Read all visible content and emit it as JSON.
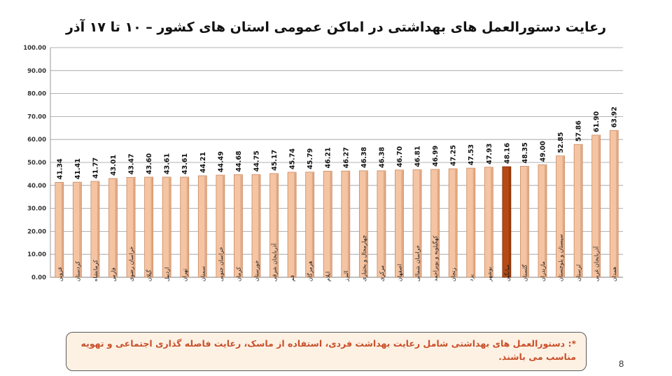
{
  "slide": {
    "title": "رعایت دستورالعمل های بهداشتی در اماکن عمومی استان های کشور  –  ۱۰ تا ۱۷ آذر",
    "note": "*: دستورالعمل های بهداشتی شامل رعایت بهداشت فردی، استفاده از ماسک، رعایت فاصله گذاری اجتماعی و تهویه مناسب می باشند.",
    "page_number": "8"
  },
  "colors": {
    "bar_fill": "#f5c4a2",
    "bar_stroke": "#c98a62",
    "highlight_fill": "#b84a14",
    "highlight_stroke": "#7a2c06",
    "grid": "#9a9a9a",
    "note_text": "#c8502a",
    "note_bg": "#fdf1e4"
  },
  "chart_data": {
    "type": "bar",
    "title": "رعایت دستورالعمل های بهداشتی در اماکن عمومی استان های کشور  –  ۱۰ تا ۱۷ آذر",
    "xlabel": "",
    "ylabel": "",
    "ylim": [
      0,
      100
    ],
    "yticks": [
      "0.00",
      "10.00",
      "20.00",
      "30.00",
      "40.00",
      "50.00",
      "60.00",
      "70.00",
      "80.00",
      "90.00",
      "100.00"
    ],
    "grid": true,
    "categories": [
      "قزوین",
      "کردستان",
      "کرمانشاه",
      "فارس",
      "خراسان رضوی",
      "گیلان",
      "اردبیل",
      "تهران",
      "سمنان",
      "خراسان جنوبی",
      "کرمان",
      "خوزستان",
      "آذربایجان شرقی",
      "قم",
      "هرمزگان",
      "ایلام",
      "البرز",
      "چهارمحال و بختیاری",
      "مرکزی",
      "اصفهان",
      "خراسان شمالی",
      "کهگیلویه و بویراحمد",
      "زنجان",
      "یزد",
      "بوشهر",
      "میانگین",
      "گلستان",
      "مازندران",
      "سیستان و بلوچستان",
      "لرستان",
      "آذربایجان غربی",
      "همدان"
    ],
    "values": [
      41.34,
      41.41,
      41.77,
      43.01,
      43.47,
      43.6,
      43.61,
      43.61,
      44.21,
      44.49,
      44.68,
      44.75,
      45.17,
      45.74,
      45.79,
      46.21,
      46.27,
      46.38,
      46.38,
      46.7,
      46.81,
      46.99,
      47.25,
      47.53,
      47.93,
      48.16,
      48.35,
      49.0,
      52.85,
      57.86,
      61.9,
      63.92
    ],
    "value_labels": [
      "41.34",
      "41.41",
      "41.77",
      "43.01",
      "43.47",
      "43.60",
      "43.61",
      "43.61",
      "44.21",
      "44.49",
      "44.68",
      "44.75",
      "45.17",
      "45.74",
      "45.79",
      "46.21",
      "46.27",
      "46.38",
      "46.38",
      "46.70",
      "46.81",
      "46.99",
      "47.25",
      "47.53",
      "47.93",
      "48.16",
      "48.35",
      "49.00",
      "52.85",
      "57.86",
      "61.90",
      "63.92"
    ],
    "highlight_category": "میانگین"
  }
}
